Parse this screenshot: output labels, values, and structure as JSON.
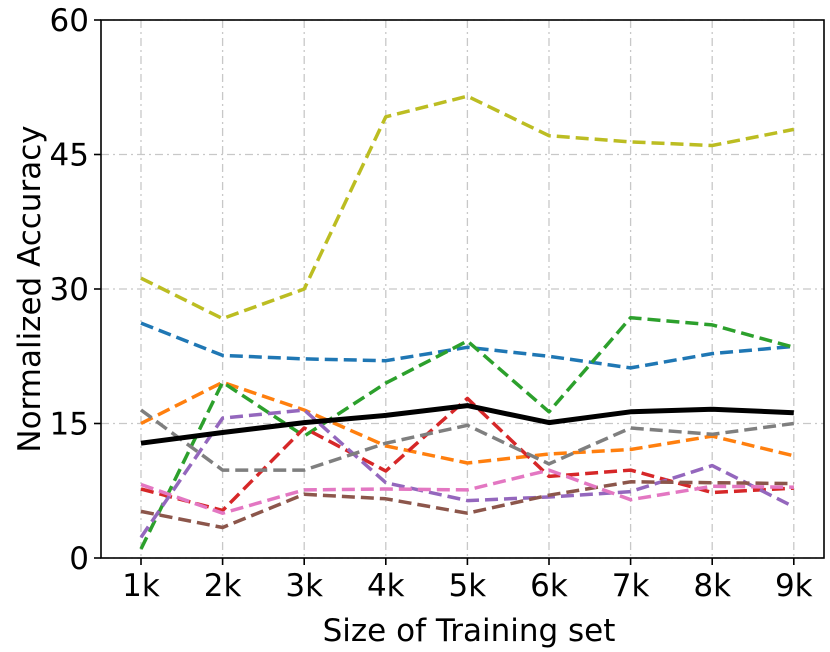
{
  "chart_data": {
    "type": "line",
    "xlabel": "Size of Training set",
    "ylabel": "Normalized Accuracy",
    "categories": [
      "1k",
      "2k",
      "3k",
      "4k",
      "5k",
      "6k",
      "7k",
      "8k",
      "9k"
    ],
    "yticks": [
      "0",
      "15",
      "30",
      "45",
      "60"
    ],
    "ylim": [
      0,
      60
    ],
    "grid": true,
    "series": [
      {
        "color": "#1f77b4",
        "style": "dashed",
        "values": [
          26.2,
          22.6,
          22.2,
          22.0,
          23.5,
          22.5,
          21.2,
          22.8,
          23.6
        ]
      },
      {
        "color": "#ff7f0e",
        "style": "dashed",
        "values": [
          15.0,
          19.6,
          16.5,
          12.5,
          10.6,
          11.6,
          12.1,
          13.6,
          11.4
        ]
      },
      {
        "color": "#2ca02c",
        "style": "dashed",
        "values": [
          1.0,
          19.6,
          13.6,
          19.5,
          24.2,
          16.3,
          26.8,
          26.0,
          23.5
        ]
      },
      {
        "color": "#d62728",
        "style": "dashed",
        "values": [
          7.7,
          5.3,
          14.5,
          9.7,
          17.8,
          9.1,
          9.8,
          7.3,
          7.8
        ]
      },
      {
        "color": "#9467bd",
        "style": "dashed",
        "values": [
          2.3,
          15.6,
          16.5,
          8.4,
          6.4,
          6.8,
          7.4,
          10.3,
          5.7
        ]
      },
      {
        "color": "#8c564b",
        "style": "dashed",
        "values": [
          5.2,
          3.4,
          7.1,
          6.6,
          5.0,
          7.0,
          8.5,
          8.4,
          8.3
        ]
      },
      {
        "color": "#e377c2",
        "style": "dashed",
        "values": [
          8.2,
          5.0,
          7.6,
          7.7,
          7.6,
          9.8,
          6.5,
          8.0,
          7.9
        ]
      },
      {
        "color": "#7f7f7f",
        "style": "dashed",
        "values": [
          16.5,
          9.8,
          9.8,
          12.8,
          14.8,
          10.5,
          14.5,
          13.8,
          15.0
        ]
      },
      {
        "color": "#bcbd22",
        "style": "dashed",
        "values": [
          31.2,
          26.7,
          30.0,
          49.2,
          51.5,
          47.1,
          46.4,
          46.0,
          47.8
        ]
      },
      {
        "color": "#000000",
        "style": "solid",
        "values": [
          12.8,
          14.0,
          15.1,
          15.9,
          17.0,
          15.1,
          16.3,
          16.6,
          16.2
        ]
      }
    ]
  }
}
